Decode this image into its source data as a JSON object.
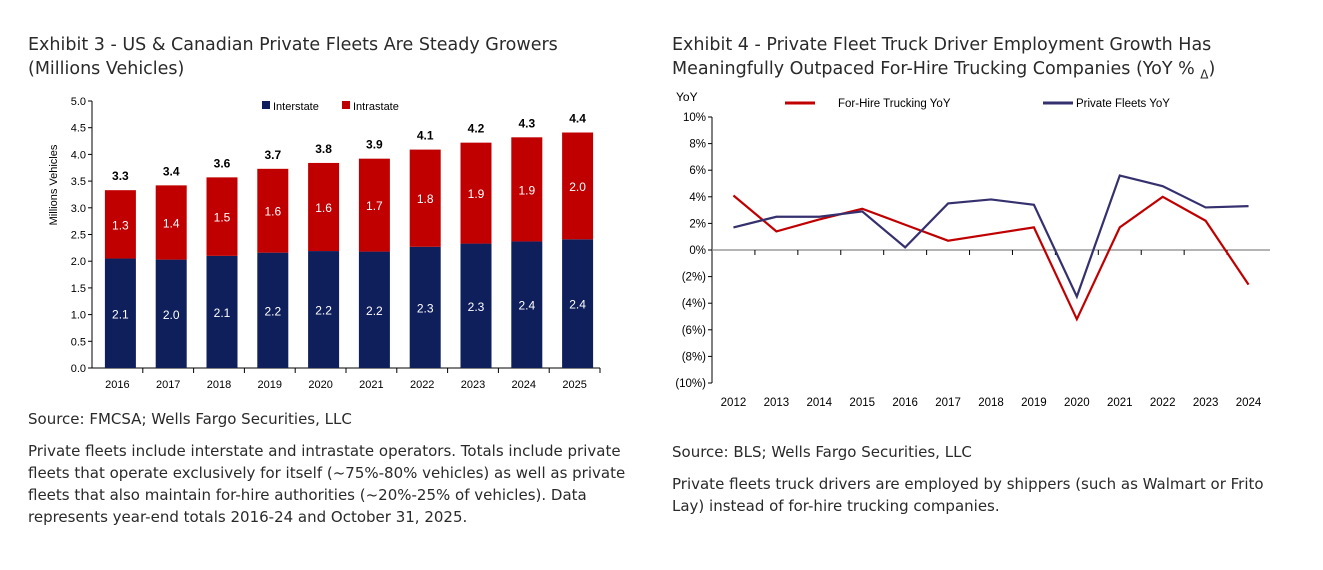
{
  "chart_data": [
    {
      "type": "bar",
      "stacked": true,
      "title_line1": "Exhibit 3 - US & Canadian Private Fleets Are Steady Growers",
      "title_line2": "(Millions Vehicles)",
      "ylabel": "Millions Vehicles",
      "ylim": [
        0,
        5
      ],
      "yticks": [
        "0.0",
        "0.5",
        "1.0",
        "1.5",
        "2.0",
        "2.5",
        "3.0",
        "3.5",
        "4.0",
        "4.5",
        "5.0"
      ],
      "categories": [
        "2016",
        "2017",
        "2018",
        "2019",
        "2020",
        "2021",
        "2022",
        "2023",
        "2024",
        "2025"
      ],
      "legend_position": "top-center",
      "series": [
        {
          "name": "Interstate",
          "color": "#0f1f5c",
          "values": [
            2.05,
            2.03,
            2.1,
            2.16,
            2.19,
            2.18,
            2.27,
            2.33,
            2.37,
            2.41
          ],
          "labels": [
            "2.1",
            "2.0",
            "2.1",
            "2.2",
            "2.2",
            "2.2",
            "2.3",
            "2.3",
            "2.4",
            "2.4"
          ]
        },
        {
          "name": "Intrastate",
          "color": "#c00000",
          "values": [
            1.28,
            1.39,
            1.47,
            1.57,
            1.65,
            1.74,
            1.82,
            1.89,
            1.95,
            2.0
          ],
          "labels": [
            "1.3",
            "1.4",
            "1.5",
            "1.6",
            "1.6",
            "1.7",
            "1.8",
            "1.9",
            "1.9",
            "2.0"
          ]
        }
      ],
      "total_labels": [
        "3.3",
        "3.4",
        "3.6",
        "3.7",
        "3.8",
        "3.9",
        "4.1",
        "4.2",
        "4.3",
        "4.4"
      ],
      "source": "Source: FMCSA; Wells Fargo Securities, LLC",
      "note": "Private fleets include interstate and intrastate operators. Totals include private fleets that operate exclusively for itself (~75%-80% vehicles) as well as private fleets that also maintain for-hire authorities (~20%-25% of vehicles). Data represents year-end totals 2016-24 and October 31, 2025."
    },
    {
      "type": "line",
      "title_line1": "Exhibit 4 - Private Fleet Truck Driver Employment Growth Has",
      "title_line2": "Meaningfully Outpaced For-Hire Trucking Companies (YoY % ",
      "title_delta": "Δ",
      "title_end": ")",
      "ylabel": "YoY",
      "ylim": [
        -10,
        10
      ],
      "yticks": [
        "(10%)",
        "(8%)",
        "(6%)",
        "(4%)",
        "(2%)",
        "0%",
        "2%",
        "4%",
        "6%",
        "8%",
        "10%"
      ],
      "categories": [
        "2012",
        "2013",
        "2014",
        "2015",
        "2016",
        "2017",
        "2018",
        "2019",
        "2020",
        "2021",
        "2022",
        "2023",
        "2024"
      ],
      "legend_position": "top",
      "series": [
        {
          "name": "For-Hire Trucking YoY",
          "color": "#c00000",
          "values": [
            4.1,
            1.4,
            2.3,
            3.1,
            1.9,
            0.7,
            1.2,
            1.7,
            -5.2,
            1.7,
            4.0,
            2.2,
            -2.6
          ]
        },
        {
          "name": "Private Fleets YoY",
          "color": "#35306e",
          "values": [
            1.7,
            2.5,
            2.5,
            2.9,
            0.2,
            3.5,
            3.8,
            3.4,
            -3.5,
            5.6,
            4.8,
            3.2,
            3.3
          ]
        }
      ],
      "source": "Source: BLS; Wells Fargo Securities, LLC",
      "note": "Private fleets truck drivers are employed by shippers (such as Walmart or Frito Lay) instead of for-hire trucking companies."
    }
  ]
}
